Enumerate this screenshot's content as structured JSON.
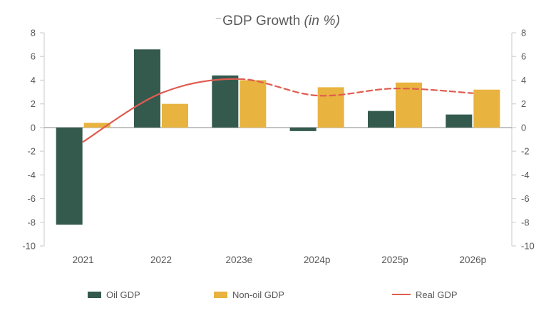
{
  "title": {
    "artifact": "–",
    "main": "GDP Growth",
    "suffix": "(in %)"
  },
  "chart_data": {
    "type": "bar",
    "subtype": "grouped-bars-with-smooth-line-overlay",
    "title": "GDP Growth (in %)",
    "categories": [
      "2021",
      "2022",
      "2023e",
      "2024p",
      "2025p",
      "2026p"
    ],
    "series": [
      {
        "name": "Oil GDP",
        "type": "bar",
        "color": "#345a4e",
        "values": [
          -8.2,
          6.6,
          4.4,
          -0.3,
          1.4,
          1.1
        ]
      },
      {
        "name": "Non-oil GDP",
        "type": "bar",
        "color": "#e8b33e",
        "values": [
          0.4,
          2.0,
          4.0,
          3.4,
          3.8,
          3.2
        ]
      },
      {
        "name": "Real GDP",
        "type": "line",
        "color": "#e05c50",
        "values": [
          -1.2,
          2.9,
          4.1,
          2.7,
          3.3,
          2.9
        ],
        "smooth": true,
        "solid_until_category": "2023e",
        "dashed_from_category": "2023e"
      }
    ],
    "y_axis": {
      "min": -10,
      "max": 8,
      "step": 2,
      "ticks": [
        8,
        6,
        4,
        2,
        0,
        -2,
        -4,
        -6,
        -8,
        -10
      ],
      "dual": true
    },
    "gridlines": false,
    "legend_position": "bottom"
  },
  "legend": {
    "items": [
      {
        "label": "Oil GDP",
        "marker": "rect",
        "color": "#345a4e"
      },
      {
        "label": "Non-oil GDP",
        "marker": "rect",
        "color": "#e8b33e"
      },
      {
        "label": "Real GDP",
        "marker": "line",
        "color": "#e05c50"
      }
    ]
  },
  "colors": {
    "axis_text": "#595959",
    "axis_line": "#d2d2d2",
    "zero_line": "#a6a6a6",
    "title_text": "#595959"
  }
}
